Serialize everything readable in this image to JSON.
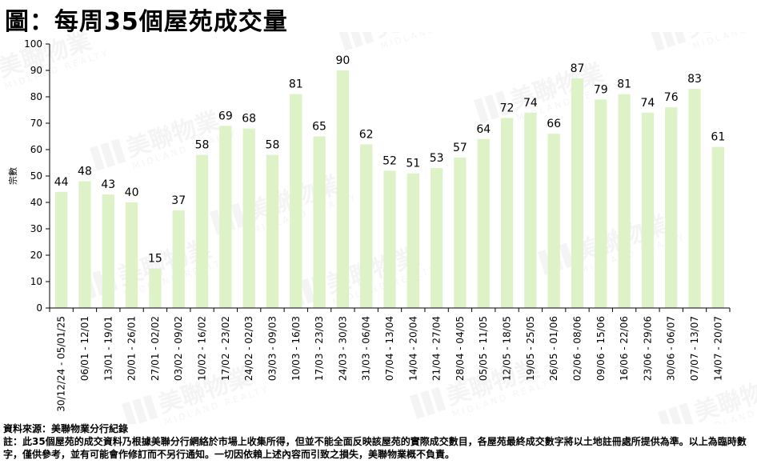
{
  "title": "圖：每周35個屋苑成交量",
  "chart_data": {
    "type": "bar",
    "ylabel": "宗數",
    "xlabel": "",
    "ylim": [
      0,
      100
    ],
    "yticks": [
      0,
      10,
      20,
      30,
      40,
      50,
      60,
      70,
      80,
      90,
      100
    ],
    "grid": false,
    "legend": "none",
    "data_labels": true,
    "bar_color": "#ddf2c6",
    "categories": [
      "30/12/24 - 05/01/25",
      "06/01 - 12/01",
      "13/01 - 19/01",
      "20/01 - 26/01",
      "27/01 - 02/02",
      "03/02 - 09/02",
      "10/02 - 16/02",
      "17/02 - 23/02",
      "24/02 - 02/03",
      "03/03 - 09/03",
      "10/03 - 16/03",
      "17/03 - 23/03",
      "24/03 - 30/03",
      "31/03 - 06/04",
      "07/04 - 13/04",
      "14/04 - 20/04",
      "21/04 - 27/04",
      "28/04 - 04/05",
      "05/05 - 11/05",
      "12/05 - 18/05",
      "19/05 - 25/05",
      "26/05 - 01/06",
      "02/06 - 08/06",
      "09/06 - 15/06",
      "16/06 - 22/06",
      "23/06 - 29/06",
      "30/06 - 06/07",
      "07/07 - 13/07",
      "14/07 - 20/07"
    ],
    "values": [
      44,
      48,
      43,
      40,
      15,
      37,
      58,
      69,
      68,
      58,
      81,
      65,
      90,
      62,
      52,
      51,
      53,
      57,
      64,
      72,
      74,
      66,
      87,
      79,
      81,
      74,
      76,
      83,
      61
    ]
  },
  "watermark": {
    "brand_cn": "美聯物業",
    "brand_en": "MIDLAND REALTY"
  },
  "footer": {
    "source": "資料來源：美聯物業分行紀錄",
    "note": "註：此35個屋苑的成交資料乃根據美聯分行網絡於市場上收集所得，但並不能全面反映該屋苑的實際成交數目，各屋苑最終成交數字將以土地註冊處所提供為準。以上為臨時數字，僅供參考，並有可能會作修訂而不另行通知。一切因依賴上述內容而引致之損失，美聯物業概不負責。"
  }
}
